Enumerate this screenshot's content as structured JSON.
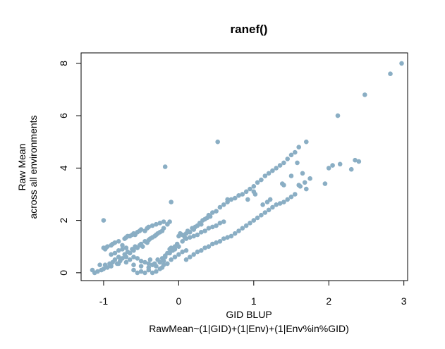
{
  "chart_data": {
    "type": "scatter",
    "title": "ranef()",
    "xlabel": "GID BLUP",
    "xlabel_sub": "RawMean~(1|GID)+(1|Env)+(1|Env%in%GID)",
    "ylabel_line1": "Raw Mean",
    "ylabel_line2": "across all environments",
    "xlim": [
      -1.3,
      3.05
    ],
    "ylim": [
      -0.3,
      8.4
    ],
    "x_ticks": [
      -1,
      0,
      1,
      2,
      3
    ],
    "y_ticks": [
      0,
      2,
      4,
      6,
      8
    ],
    "x_tick_labels": [
      "-1",
      "0",
      "1",
      "2",
      "3"
    ],
    "y_tick_labels": [
      "0",
      "2",
      "4",
      "6",
      "8"
    ],
    "point_color": "#8aaec4",
    "grid": false,
    "points": [
      [
        -1.15,
        0.1
      ],
      [
        -1.12,
        0.0
      ],
      [
        -1.08,
        0.05
      ],
      [
        -1.05,
        0.3
      ],
      [
        -1.03,
        0.1
      ],
      [
        -1.0,
        0.15
      ],
      [
        -0.98,
        0.3
      ],
      [
        -0.95,
        0.2
      ],
      [
        -0.92,
        0.35
      ],
      [
        -0.9,
        0.25
      ],
      [
        -0.88,
        0.4
      ],
      [
        -0.85,
        0.5
      ],
      [
        -0.82,
        0.35
      ],
      [
        -0.8,
        0.6
      ],
      [
        -0.78,
        0.45
      ],
      [
        -0.75,
        0.55
      ],
      [
        -0.72,
        0.7
      ],
      [
        -0.7,
        0.6
      ],
      [
        -0.68,
        0.8
      ],
      [
        -0.65,
        0.75
      ],
      [
        -0.62,
        0.9
      ],
      [
        -0.6,
        0.85
      ],
      [
        -0.58,
        1.0
      ],
      [
        -0.55,
        0.95
      ],
      [
        -0.52,
        1.05
      ],
      [
        -0.5,
        1.1
      ],
      [
        -0.48,
        1.0
      ],
      [
        -0.45,
        1.2
      ],
      [
        -0.42,
        1.15
      ],
      [
        -0.4,
        1.25
      ],
      [
        -0.38,
        1.3
      ],
      [
        -0.35,
        1.35
      ],
      [
        -0.32,
        1.4
      ],
      [
        -0.3,
        1.45
      ],
      [
        -0.28,
        1.5
      ],
      [
        -0.25,
        1.55
      ],
      [
        -0.22,
        1.6
      ],
      [
        -0.2,
        1.7
      ],
      [
        -1.0,
        0.95
      ],
      [
        -0.97,
        0.95
      ],
      [
        -0.95,
        1.0
      ],
      [
        -0.9,
        1.05
      ],
      [
        -0.88,
        1.1
      ],
      [
        -0.85,
        1.15
      ],
      [
        -0.8,
        1.2
      ],
      [
        -0.75,
        1.05
      ],
      [
        -0.72,
        1.3
      ],
      [
        -0.7,
        1.35
      ],
      [
        -0.68,
        1.4
      ],
      [
        -0.65,
        1.4
      ],
      [
        -0.62,
        1.45
      ],
      [
        -0.6,
        1.5
      ],
      [
        -0.58,
        1.45
      ],
      [
        -0.55,
        1.55
      ],
      [
        -0.52,
        1.6
      ],
      [
        -0.5,
        1.65
      ],
      [
        -0.45,
        1.6
      ],
      [
        -0.42,
        1.7
      ],
      [
        -0.4,
        1.75
      ],
      [
        -0.35,
        1.8
      ],
      [
        -0.3,
        1.85
      ],
      [
        -0.25,
        1.9
      ],
      [
        -0.2,
        1.95
      ],
      [
        -0.15,
        1.85
      ],
      [
        -0.12,
        1.95
      ],
      [
        -0.98,
        0.9
      ],
      [
        -0.9,
        0.7
      ],
      [
        -0.85,
        0.75
      ],
      [
        -0.8,
        0.85
      ],
      [
        -0.75,
        0.9
      ],
      [
        -0.7,
        0.95
      ],
      [
        -0.65,
        0.5
      ],
      [
        -0.6,
        0.6
      ],
      [
        -0.55,
        0.55
      ],
      [
        -0.5,
        0.45
      ],
      [
        -0.45,
        0.4
      ],
      [
        -0.4,
        0.35
      ],
      [
        -0.38,
        0.5
      ],
      [
        -0.35,
        0.3
      ],
      [
        -0.3,
        0.25
      ],
      [
        -0.25,
        0.4
      ],
      [
        -0.2,
        0.45
      ],
      [
        -0.18,
        0.6
      ],
      [
        -0.15,
        0.75
      ],
      [
        -0.12,
        0.9
      ],
      [
        -0.1,
        0.95
      ],
      [
        -0.05,
        1.0
      ],
      [
        -0.02,
        1.1
      ],
      [
        0.0,
        1.0
      ],
      [
        -0.6,
        0.1
      ],
      [
        -0.55,
        0.0
      ],
      [
        -0.5,
        0.05
      ],
      [
        -0.45,
        0.0
      ],
      [
        -0.4,
        0.1
      ],
      [
        -0.35,
        0.0
      ],
      [
        -0.3,
        0.05
      ],
      [
        -0.25,
        0.15
      ],
      [
        -0.22,
        0.2
      ],
      [
        -0.2,
        0.3
      ],
      [
        -0.15,
        0.35
      ],
      [
        -0.1,
        0.5
      ],
      [
        -0.05,
        0.6
      ],
      [
        0.0,
        0.7
      ],
      [
        0.05,
        0.8
      ],
      [
        0.1,
        0.85
      ],
      [
        -0.8,
        0.35
      ],
      [
        -0.7,
        0.4
      ],
      [
        -0.6,
        0.3
      ],
      [
        -0.5,
        0.25
      ],
      [
        -0.4,
        0.2
      ],
      [
        -0.32,
        0.35
      ],
      [
        -0.28,
        0.5
      ],
      [
        -0.22,
        0.55
      ],
      [
        -0.18,
        0.65
      ],
      [
        -0.12,
        0.75
      ],
      [
        -0.08,
        0.85
      ],
      [
        -0.05,
        0.9
      ],
      [
        0.0,
        1.4
      ],
      [
        0.02,
        1.5
      ],
      [
        0.05,
        1.45
      ],
      [
        0.08,
        1.35
      ],
      [
        0.1,
        1.5
      ],
      [
        0.12,
        1.6
      ],
      [
        0.15,
        1.55
      ],
      [
        0.18,
        1.7
      ],
      [
        0.2,
        1.65
      ],
      [
        0.22,
        1.75
      ],
      [
        0.25,
        1.8
      ],
      [
        0.28,
        1.9
      ],
      [
        0.3,
        1.85
      ],
      [
        0.32,
        2.0
      ],
      [
        0.35,
        2.05
      ],
      [
        0.38,
        2.1
      ],
      [
        0.4,
        2.2
      ],
      [
        0.42,
        2.15
      ],
      [
        0.45,
        2.3
      ],
      [
        0.5,
        2.35
      ],
      [
        0.55,
        2.5
      ],
      [
        0.6,
        2.6
      ],
      [
        0.65,
        2.7
      ],
      [
        0.7,
        2.8
      ],
      [
        0.75,
        2.85
      ],
      [
        0.8,
        2.95
      ],
      [
        0.85,
        3.0
      ],
      [
        0.9,
        3.1
      ],
      [
        0.95,
        3.2
      ],
      [
        1.0,
        3.3
      ],
      [
        1.05,
        3.45
      ],
      [
        1.1,
        3.55
      ],
      [
        1.15,
        3.7
      ],
      [
        1.2,
        3.8
      ],
      [
        1.25,
        3.9
      ],
      [
        1.3,
        4.0
      ],
      [
        1.35,
        4.1
      ],
      [
        1.4,
        4.2
      ],
      [
        1.45,
        4.35
      ],
      [
        1.5,
        4.5
      ],
      [
        1.55,
        4.6
      ],
      [
        1.6,
        4.8
      ],
      [
        1.7,
        5.0
      ],
      [
        0.1,
        0.5
      ],
      [
        0.15,
        0.6
      ],
      [
        0.2,
        0.7
      ],
      [
        0.25,
        0.8
      ],
      [
        0.3,
        0.85
      ],
      [
        0.35,
        0.95
      ],
      [
        0.4,
        1.0
      ],
      [
        0.45,
        1.1
      ],
      [
        0.5,
        1.15
      ],
      [
        0.55,
        1.2
      ],
      [
        0.6,
        1.3
      ],
      [
        0.65,
        1.35
      ],
      [
        0.7,
        1.4
      ],
      [
        0.75,
        1.5
      ],
      [
        0.8,
        1.6
      ],
      [
        0.85,
        1.7
      ],
      [
        0.9,
        1.8
      ],
      [
        0.95,
        1.9
      ],
      [
        1.0,
        2.0
      ],
      [
        1.05,
        2.1
      ],
      [
        1.1,
        2.2
      ],
      [
        1.15,
        2.3
      ],
      [
        1.2,
        2.4
      ],
      [
        1.25,
        2.5
      ],
      [
        1.3,
        2.6
      ],
      [
        1.35,
        2.65
      ],
      [
        1.4,
        2.7
      ],
      [
        1.45,
        2.8
      ],
      [
        1.5,
        2.9
      ],
      [
        1.55,
        3.0
      ],
      [
        0.05,
        1.2
      ],
      [
        0.1,
        1.3
      ],
      [
        0.15,
        1.35
      ],
      [
        0.2,
        1.4
      ],
      [
        0.25,
        1.45
      ],
      [
        0.3,
        1.55
      ],
      [
        0.35,
        1.6
      ],
      [
        0.4,
        1.7
      ],
      [
        0.45,
        1.75
      ],
      [
        0.5,
        1.8
      ],
      [
        0.55,
        1.9
      ],
      [
        0.6,
        1.95
      ],
      [
        -1.0,
        2.0
      ],
      [
        -0.18,
        4.05
      ],
      [
        -0.1,
        2.7
      ],
      [
        0.52,
        5.0
      ],
      [
        0.65,
        2.8
      ],
      [
        0.92,
        2.8
      ],
      [
        1.0,
        3.1
      ],
      [
        1.02,
        3.0
      ],
      [
        1.12,
        2.6
      ],
      [
        1.18,
        2.7
      ],
      [
        1.22,
        2.8
      ],
      [
        1.38,
        3.4
      ],
      [
        1.4,
        3.35
      ],
      [
        1.6,
        3.35
      ],
      [
        1.62,
        3.3
      ],
      [
        1.68,
        3.45
      ],
      [
        1.7,
        3.2
      ],
      [
        1.75,
        3.6
      ],
      [
        1.95,
        3.4
      ],
      [
        2.0,
        4.0
      ],
      [
        2.05,
        4.1
      ],
      [
        2.12,
        6.0
      ],
      [
        2.15,
        4.15
      ],
      [
        2.3,
        3.95
      ],
      [
        2.35,
        4.3
      ],
      [
        2.4,
        4.25
      ],
      [
        2.48,
        6.8
      ],
      [
        2.82,
        7.6
      ],
      [
        2.97,
        8.0
      ],
      [
        1.5,
        3.7
      ],
      [
        1.58,
        4.2
      ],
      [
        1.65,
        3.8
      ]
    ]
  }
}
